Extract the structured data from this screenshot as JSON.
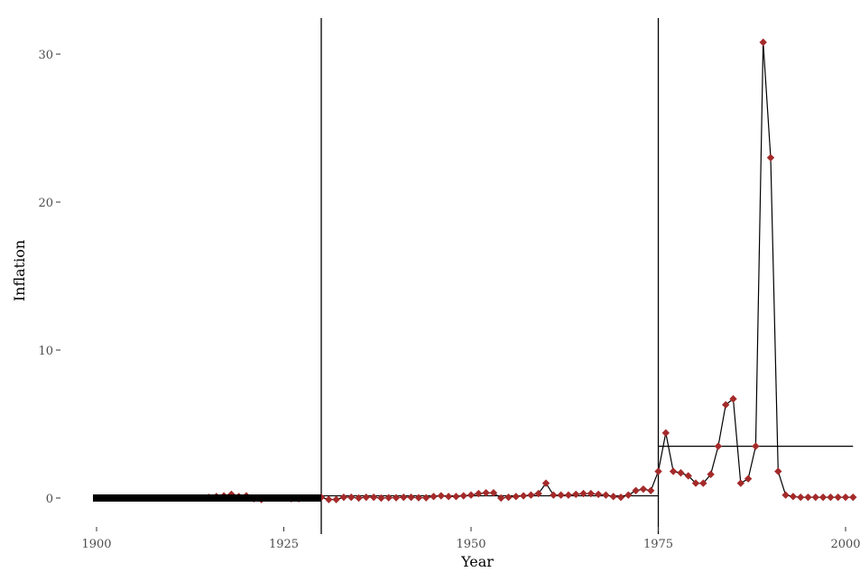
{
  "chart_data": {
    "type": "line",
    "title": "",
    "xlabel": "Year",
    "ylabel": "Inflation",
    "xlim": [
      1900,
      2001
    ],
    "ylim": [
      -1,
      32
    ],
    "x_ticks": [
      "1900",
      "1925",
      "1950",
      "1975",
      "2000"
    ],
    "y_ticks": [
      "0",
      "10",
      "20",
      "30"
    ],
    "grid": false,
    "point_color": "#a52a2a",
    "line_color": "#000000",
    "vertical_lines": [
      1930,
      1975
    ],
    "regime_means": [
      {
        "x_start": 1900,
        "x_end": 1930,
        "value": 0.0
      },
      {
        "x_start": 1930,
        "x_end": 1975,
        "value": 0.15
      },
      {
        "x_start": 1975,
        "x_end": 2001,
        "value": 3.5
      }
    ],
    "series": [
      {
        "x": [
          1900,
          1901,
          1902,
          1903,
          1904,
          1905,
          1906,
          1907,
          1908,
          1909,
          1910,
          1911,
          1912,
          1913,
          1914,
          1915,
          1916,
          1917,
          1918,
          1919,
          1920,
          1921,
          1922,
          1923,
          1924,
          1925,
          1926,
          1927,
          1928,
          1929,
          1930,
          1931,
          1932,
          1933,
          1934,
          1935,
          1936,
          1937,
          1938,
          1939,
          1940,
          1941,
          1942,
          1943,
          1944,
          1945,
          1946,
          1947,
          1948,
          1949,
          1950,
          1951,
          1952,
          1953,
          1954,
          1955,
          1956,
          1957,
          1958,
          1959,
          1960,
          1961,
          1962,
          1963,
          1964,
          1965,
          1966,
          1967,
          1968,
          1969,
          1970,
          1971,
          1972,
          1973,
          1974,
          1975,
          1976,
          1977,
          1978,
          1979,
          1980,
          1981,
          1982,
          1983,
          1984,
          1985,
          1986,
          1987,
          1988,
          1989,
          1990,
          1991,
          1992,
          1993,
          1994,
          1995,
          1996,
          1997,
          1998,
          1999,
          2000,
          2001
        ],
        "y": [
          0,
          0,
          0,
          0,
          0,
          0,
          0,
          0,
          0,
          0,
          0,
          0,
          0,
          0,
          0,
          0.05,
          0.1,
          0.15,
          0.25,
          0.1,
          0.15,
          -0.05,
          -0.1,
          0,
          0,
          0,
          -0.05,
          -0.05,
          0,
          0,
          0.05,
          -0.1,
          -0.1,
          0.05,
          0.05,
          0,
          0.05,
          0.05,
          0,
          0.02,
          0.02,
          0.05,
          0.05,
          0.02,
          0.02,
          0.1,
          0.15,
          0.1,
          0.1,
          0.15,
          0.2,
          0.3,
          0.35,
          0.35,
          0,
          0.05,
          0.1,
          0.15,
          0.2,
          0.3,
          1.0,
          0.2,
          0.2,
          0.2,
          0.25,
          0.3,
          0.3,
          0.25,
          0.2,
          0.1,
          0.05,
          0.2,
          0.5,
          0.6,
          0.5,
          1.8,
          4.4,
          1.8,
          1.7,
          1.5,
          1.0,
          1.0,
          1.6,
          3.5,
          6.3,
          6.7,
          1.0,
          1.3,
          3.5,
          30.8,
          23.0,
          1.8,
          0.2,
          0.1,
          0.05,
          0.05,
          0.05,
          0.05,
          0.05,
          0.05,
          0.05,
          0.05
        ]
      }
    ]
  }
}
